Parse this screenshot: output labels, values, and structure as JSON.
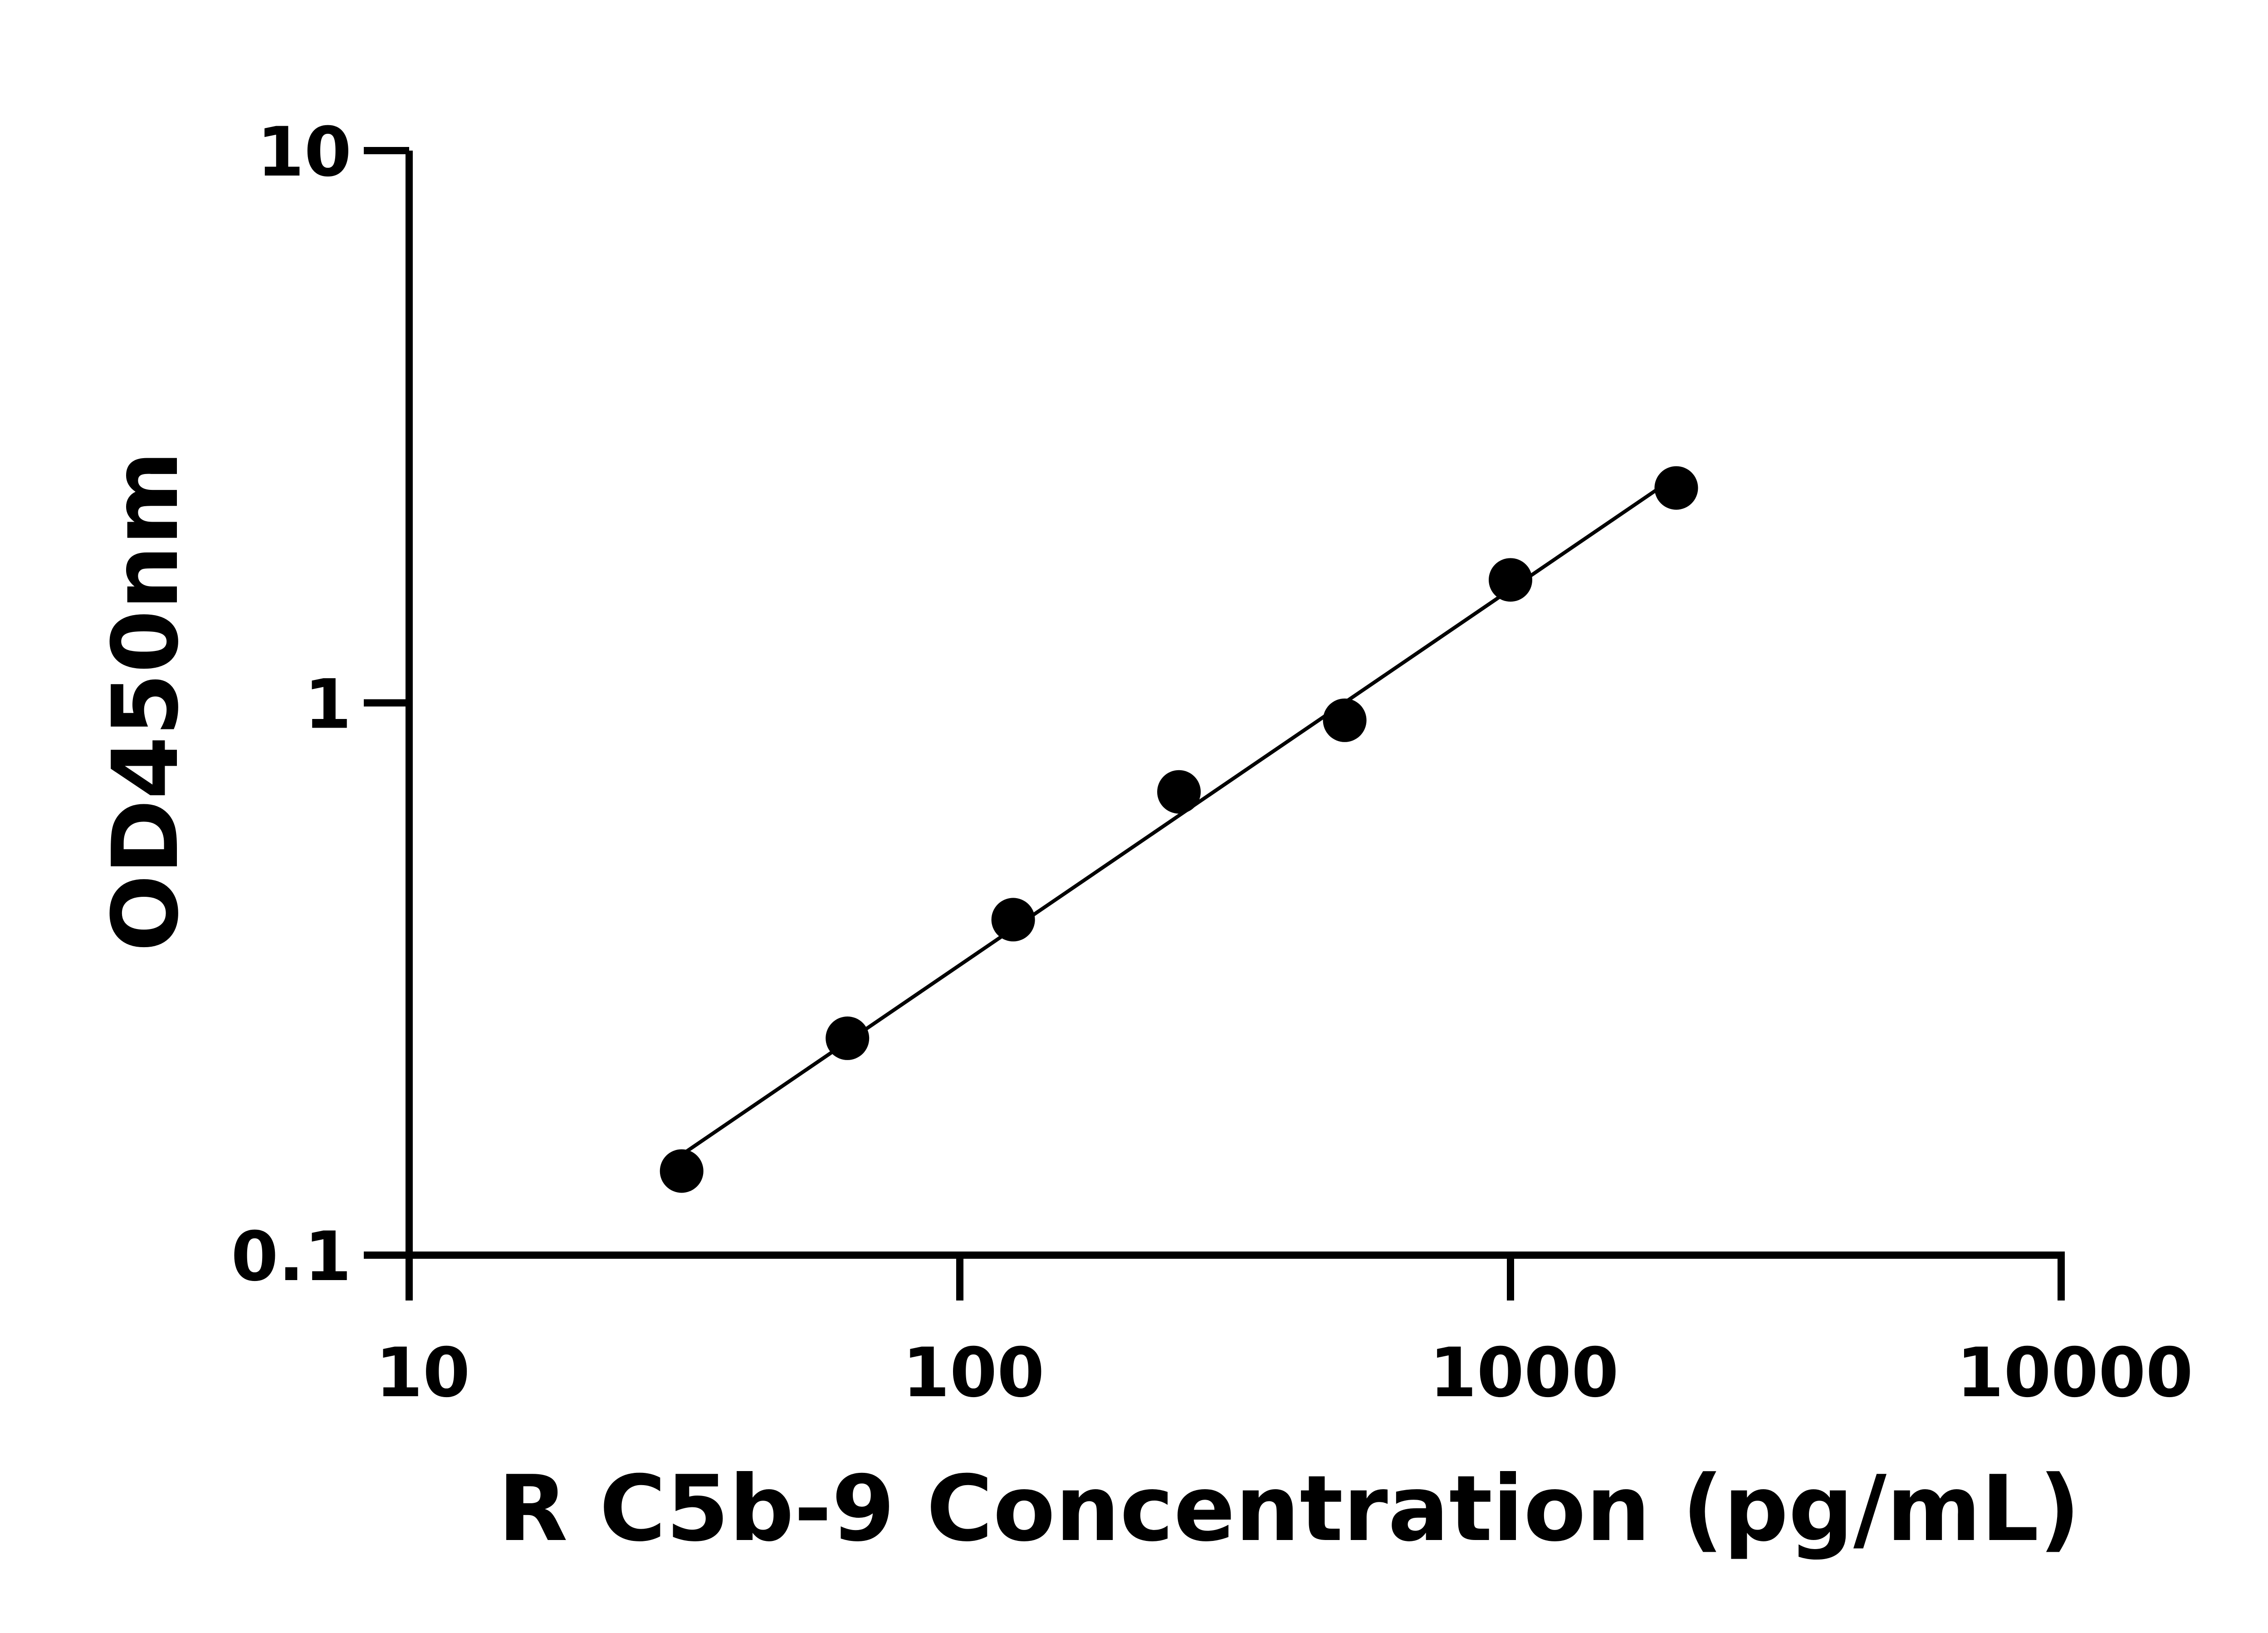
{
  "chart_data": {
    "type": "scatter",
    "title": "",
    "xlabel": "R C5b-9 Concentration (pg/mL)",
    "ylabel": "OD450nm",
    "xscale": "log",
    "yscale": "log",
    "xlim": [
      10,
      10000
    ],
    "ylim": [
      0.1,
      10
    ],
    "xticks": [
      "10",
      "100",
      "1000",
      "10000"
    ],
    "yticks": [
      "0.1",
      "1",
      "10"
    ],
    "grid": false,
    "legend": "none",
    "fit_line": "linear fit on log-log axes",
    "series": [
      {
        "x": [
          31.25,
          62.5,
          125,
          250,
          500,
          1000,
          2000
        ],
        "y": [
          0.142,
          0.247,
          0.405,
          0.69,
          0.93,
          1.67,
          2.45
        ]
      }
    ],
    "colors": {
      "points": "#000000",
      "line": "#000000",
      "axes": "#000000"
    }
  }
}
